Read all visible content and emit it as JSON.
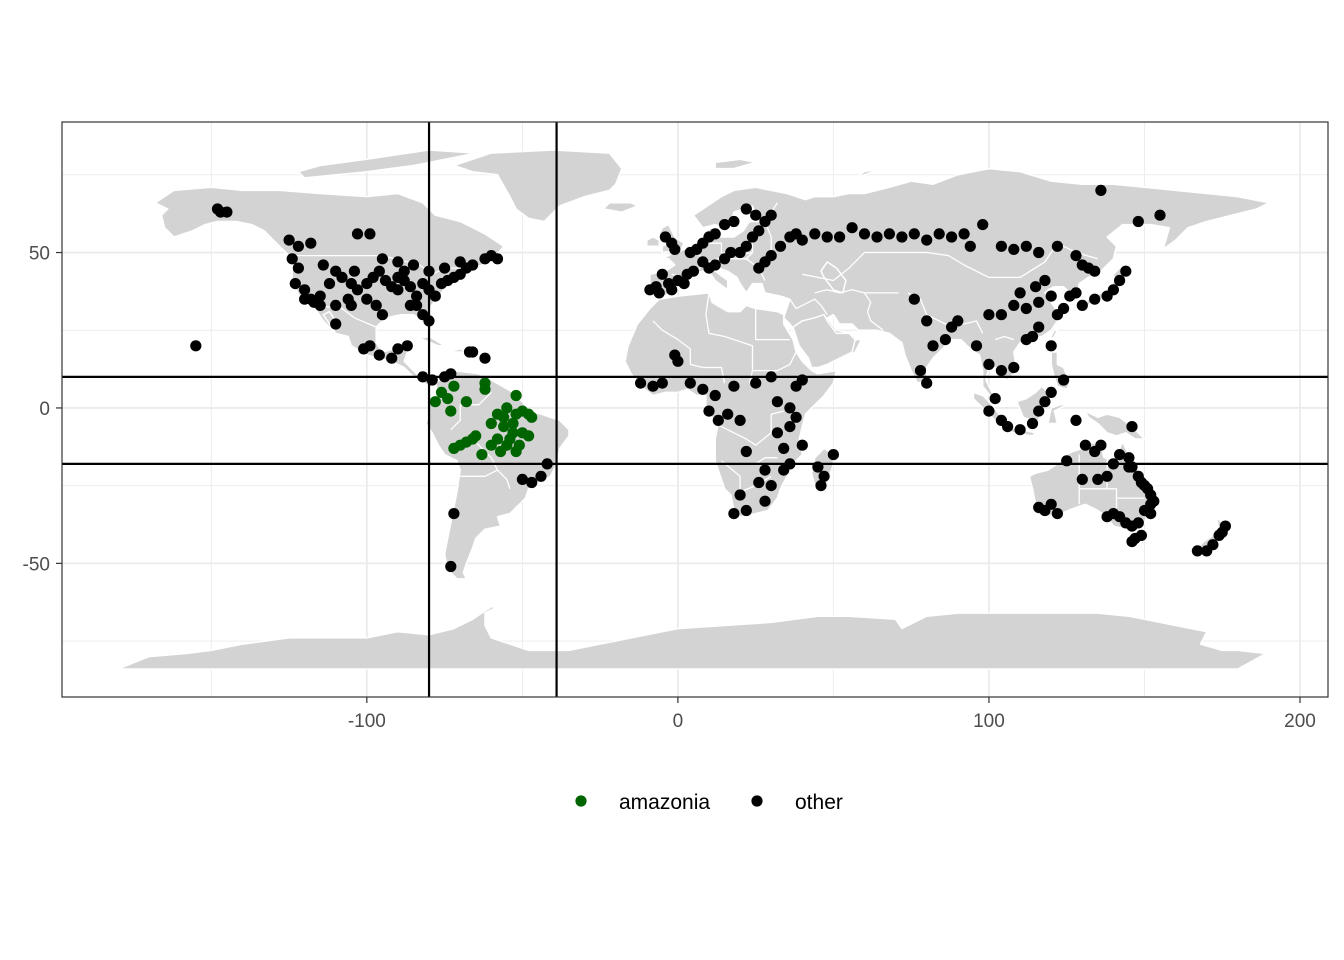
{
  "chart_data": {
    "type": "scatter",
    "title": "",
    "xlabel": "",
    "ylabel": "",
    "xlim": [
      -198,
      209
    ],
    "ylim": [
      -93,
      92
    ],
    "x_ticks": [
      -100,
      0,
      100,
      200
    ],
    "x_tick_labels": [
      "-100",
      "0",
      "100",
      "200"
    ],
    "y_ticks": [
      -50,
      0,
      50
    ],
    "y_tick_labels": [
      "-50",
      "0",
      "50"
    ],
    "grid": true,
    "legend_position": "bottom",
    "background_layer": "world-map-land",
    "colors": {
      "land": "#d3d3d3",
      "borders": "#ffffff",
      "amazonia": "#006400",
      "other": "#000000",
      "grid": "#ebebeb"
    },
    "reference_lines": {
      "vertical_x": [
        -80,
        -39
      ],
      "horizontal_y": [
        10,
        -18
      ]
    },
    "series": [
      {
        "name": "amazonia",
        "color": "#006400",
        "points": [
          [
            -78,
            2
          ],
          [
            -76,
            5
          ],
          [
            -74,
            3
          ],
          [
            -72,
            7
          ],
          [
            -73,
            -1
          ],
          [
            -68,
            2
          ],
          [
            -62,
            8
          ],
          [
            -62,
            6
          ],
          [
            -58,
            -2
          ],
          [
            -55,
            0
          ],
          [
            -52,
            4
          ],
          [
            -50,
            -1
          ],
          [
            -47,
            -3
          ],
          [
            -48,
            -2
          ],
          [
            -56,
            -6
          ],
          [
            -53,
            -5
          ],
          [
            -50,
            -8
          ],
          [
            -58,
            -10
          ],
          [
            -55,
            -12
          ],
          [
            -52,
            -14
          ],
          [
            -60,
            -12
          ],
          [
            -65,
            -9
          ],
          [
            -66,
            -10
          ],
          [
            -70,
            -12
          ],
          [
            -72,
            -13
          ],
          [
            -68,
            -11
          ],
          [
            -63,
            -15
          ],
          [
            -57,
            -14
          ],
          [
            -54,
            -10
          ],
          [
            -51,
            -12
          ],
          [
            -48,
            -9
          ],
          [
            -53,
            -8
          ],
          [
            -56,
            -3
          ],
          [
            -60,
            -5
          ],
          [
            -52,
            -2
          ]
        ]
      },
      {
        "name": "other",
        "color": "#000000",
        "points": [
          [
            -148,
            64
          ],
          [
            -147,
            63
          ],
          [
            -145,
            63
          ],
          [
            -125,
            54
          ],
          [
            -122,
            52
          ],
          [
            -118,
            53
          ],
          [
            -124,
            48
          ],
          [
            -122,
            45
          ],
          [
            -123,
            40
          ],
          [
            -120,
            38
          ],
          [
            -118,
            35
          ],
          [
            -117,
            34
          ],
          [
            -115,
            36
          ],
          [
            -112,
            40
          ],
          [
            -110,
            44
          ],
          [
            -108,
            42
          ],
          [
            -105,
            40
          ],
          [
            -103,
            38
          ],
          [
            -100,
            40
          ],
          [
            -98,
            42
          ],
          [
            -96,
            44
          ],
          [
            -94,
            41
          ],
          [
            -92,
            39
          ],
          [
            -90,
            42
          ],
          [
            -88,
            41
          ],
          [
            -86,
            39
          ],
          [
            -84,
            36
          ],
          [
            -82,
            40
          ],
          [
            -80,
            38
          ],
          [
            -78,
            36
          ],
          [
            -76,
            40
          ],
          [
            -74,
            41
          ],
          [
            -72,
            42
          ],
          [
            -70,
            43
          ],
          [
            -68,
            45
          ],
          [
            -88,
            44
          ],
          [
            -90,
            38
          ],
          [
            -86,
            33
          ],
          [
            -84,
            33
          ],
          [
            -82,
            30
          ],
          [
            -80,
            28
          ],
          [
            -95,
            30
          ],
          [
            -97,
            33
          ],
          [
            -100,
            35
          ],
          [
            -106,
            35
          ],
          [
            -110,
            33
          ],
          [
            -115,
            33
          ],
          [
            -120,
            35
          ],
          [
            -104,
            44
          ],
          [
            -114,
            46
          ],
          [
            -95,
            48
          ],
          [
            -90,
            47
          ],
          [
            -85,
            46
          ],
          [
            -80,
            44
          ],
          [
            -75,
            45
          ],
          [
            -70,
            47
          ],
          [
            -66,
            46
          ],
          [
            -62,
            48
          ],
          [
            -60,
            49
          ],
          [
            -58,
            48
          ],
          [
            -103,
            56
          ],
          [
            -99,
            56
          ],
          [
            -105,
            33
          ],
          [
            -110,
            27
          ],
          [
            -101,
            19
          ],
          [
            -99,
            20
          ],
          [
            -96,
            17
          ],
          [
            -92,
            16
          ],
          [
            -90,
            19
          ],
          [
            -87,
            20
          ],
          [
            -155,
            20
          ],
          [
            -82,
            10
          ],
          [
            -79,
            9
          ],
          [
            -75,
            10
          ],
          [
            -73,
            11
          ],
          [
            -67,
            18
          ],
          [
            -66,
            18
          ],
          [
            -62,
            16
          ],
          [
            -47,
            -24
          ],
          [
            -44,
            -22
          ],
          [
            -42,
            -18
          ],
          [
            -50,
            -23
          ],
          [
            -72,
            -34
          ],
          [
            -73,
            -51
          ],
          [
            -5,
            43
          ],
          [
            -3,
            40
          ],
          [
            0,
            41
          ],
          [
            2,
            40
          ],
          [
            -7,
            39
          ],
          [
            -9,
            38
          ],
          [
            -6,
            37
          ],
          [
            -2,
            38
          ],
          [
            3,
            43
          ],
          [
            5,
            44
          ],
          [
            8,
            47
          ],
          [
            10,
            45
          ],
          [
            12,
            46
          ],
          [
            15,
            48
          ],
          [
            17,
            50
          ],
          [
            20,
            50
          ],
          [
            22,
            52
          ],
          [
            24,
            55
          ],
          [
            26,
            57
          ],
          [
            28,
            60
          ],
          [
            30,
            62
          ],
          [
            25,
            62
          ],
          [
            22,
            64
          ],
          [
            18,
            60
          ],
          [
            15,
            59
          ],
          [
            12,
            56
          ],
          [
            10,
            55
          ],
          [
            8,
            53
          ],
          [
            6,
            51
          ],
          [
            4,
            50
          ],
          [
            -4,
            55
          ],
          [
            -2,
            53
          ],
          [
            -1,
            51
          ],
          [
            26,
            45
          ],
          [
            28,
            47
          ],
          [
            30,
            49
          ],
          [
            33,
            52
          ],
          [
            36,
            55
          ],
          [
            38,
            56
          ],
          [
            40,
            54
          ],
          [
            44,
            56
          ],
          [
            48,
            55
          ],
          [
            52,
            55
          ],
          [
            56,
            58
          ],
          [
            60,
            56
          ],
          [
            64,
            55
          ],
          [
            68,
            56
          ],
          [
            72,
            55
          ],
          [
            76,
            56
          ],
          [
            80,
            54
          ],
          [
            84,
            56
          ],
          [
            88,
            55
          ],
          [
            92,
            56
          ],
          [
            94,
            52
          ],
          [
            98,
            59
          ],
          [
            104,
            52
          ],
          [
            108,
            51
          ],
          [
            112,
            52
          ],
          [
            116,
            50
          ],
          [
            122,
            52
          ],
          [
            128,
            49
          ],
          [
            130,
            46
          ],
          [
            132,
            45
          ],
          [
            134,
            44
          ],
          [
            136,
            70
          ],
          [
            148,
            60
          ],
          [
            155,
            62
          ],
          [
            20,
            -4
          ],
          [
            22,
            -14
          ],
          [
            28,
            -20
          ],
          [
            26,
            -24
          ],
          [
            30,
            -25
          ],
          [
            34,
            -13
          ],
          [
            32,
            -8
          ],
          [
            36,
            -6
          ],
          [
            38,
            -3
          ],
          [
            36,
            0
          ],
          [
            32,
            2
          ],
          [
            40,
            9
          ],
          [
            38,
            7
          ],
          [
            30,
            10
          ],
          [
            25,
            8
          ],
          [
            18,
            7
          ],
          [
            12,
            4
          ],
          [
            10,
            -1
          ],
          [
            13,
            -4
          ],
          [
            16,
            -2
          ],
          [
            8,
            6
          ],
          [
            4,
            8
          ],
          [
            -5,
            8
          ],
          [
            -8,
            7
          ],
          [
            -12,
            8
          ],
          [
            0,
            15
          ],
          [
            -1,
            17
          ],
          [
            45,
            -19
          ],
          [
            47,
            -22
          ],
          [
            50,
            -15
          ],
          [
            46,
            -25
          ],
          [
            20,
            -28
          ],
          [
            22,
            -33
          ],
          [
            28,
            -30
          ],
          [
            18,
            -34
          ],
          [
            34,
            -20
          ],
          [
            36,
            -18
          ],
          [
            40,
            -12
          ],
          [
            76,
            35
          ],
          [
            80,
            28
          ],
          [
            78,
            12
          ],
          [
            80,
            8
          ],
          [
            82,
            20
          ],
          [
            86,
            22
          ],
          [
            88,
            26
          ],
          [
            90,
            28
          ],
          [
            96,
            20
          ],
          [
            100,
            14
          ],
          [
            104,
            12
          ],
          [
            108,
            13
          ],
          [
            102,
            3
          ],
          [
            100,
            -1
          ],
          [
            104,
            -4
          ],
          [
            106,
            -6
          ],
          [
            110,
            -7
          ],
          [
            114,
            -5
          ],
          [
            116,
            -1
          ],
          [
            118,
            2
          ],
          [
            120,
            5
          ],
          [
            124,
            9
          ],
          [
            128,
            -4
          ],
          [
            100,
            30
          ],
          [
            104,
            30
          ],
          [
            108,
            33
          ],
          [
            112,
            32
          ],
          [
            116,
            34
          ],
          [
            120,
            36
          ],
          [
            122,
            30
          ],
          [
            124,
            32
          ],
          [
            126,
            36
          ],
          [
            128,
            37
          ],
          [
            130,
            33
          ],
          [
            134,
            35
          ],
          [
            138,
            36
          ],
          [
            140,
            38
          ],
          [
            142,
            41
          ],
          [
            144,
            44
          ],
          [
            110,
            37
          ],
          [
            115,
            39
          ],
          [
            118,
            41
          ],
          [
            114,
            23
          ],
          [
            112,
            22
          ],
          [
            116,
            26
          ],
          [
            120,
            20
          ],
          [
            116,
            -32
          ],
          [
            118,
            -33
          ],
          [
            120,
            -31
          ],
          [
            122,
            -34
          ],
          [
            125,
            -17
          ],
          [
            131,
            -12
          ],
          [
            134,
            -14
          ],
          [
            136,
            -12
          ],
          [
            130,
            -23
          ],
          [
            138,
            -22
          ],
          [
            140,
            -18
          ],
          [
            142,
            -15
          ],
          [
            145,
            -16
          ],
          [
            146,
            -19
          ],
          [
            148,
            -22
          ],
          [
            150,
            -25
          ],
          [
            152,
            -28
          ],
          [
            153,
            -30
          ],
          [
            150,
            -33
          ],
          [
            152,
            -34
          ],
          [
            148,
            -37
          ],
          [
            146,
            -38
          ],
          [
            144,
            -37
          ],
          [
            142,
            -35
          ],
          [
            140,
            -34
          ],
          [
            138,
            -35
          ],
          [
            147,
            -42
          ],
          [
            146,
            -43
          ],
          [
            149,
            -41
          ],
          [
            152,
            -31
          ],
          [
            151,
            -26
          ],
          [
            149,
            -24
          ],
          [
            170,
            -46
          ],
          [
            172,
            -44
          ],
          [
            174,
            -41
          ],
          [
            175,
            -40
          ],
          [
            176,
            -38
          ],
          [
            167,
            -46
          ],
          [
            146,
            -6
          ],
          [
            145,
            -19
          ],
          [
            135,
            -23
          ]
        ]
      }
    ]
  },
  "legend": {
    "items": [
      {
        "label": "amazonia",
        "color": "#006400"
      },
      {
        "label": "other",
        "color": "#000000"
      }
    ]
  }
}
